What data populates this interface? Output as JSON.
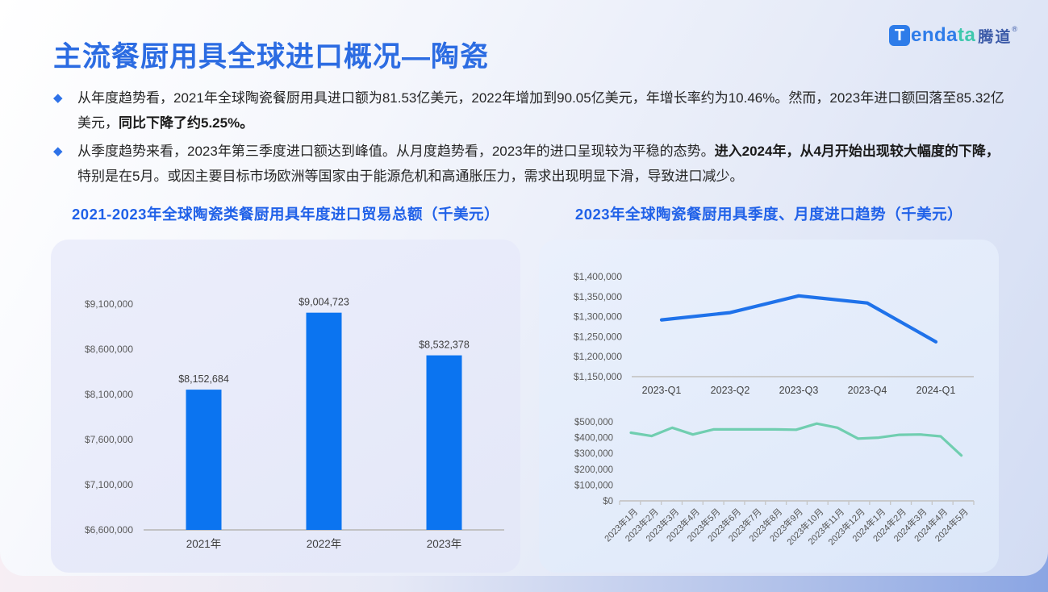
{
  "header": {
    "title": "主流餐厨用具全球进口概况—陶瓷",
    "logo": {
      "badge_letter": "T",
      "name_part_blue": "enda",
      "name_part_teal": "ta",
      "name_cn": "腾道",
      "registered_mark": "®",
      "brand_blue": "#2e7ce9",
      "brand_teal": "#3fc8ad"
    }
  },
  "ui": {
    "bullet_marker": "◆"
  },
  "bullets": [
    {
      "segments": [
        {
          "text": "从年度趋势看，2021年全球陶瓷餐厨用具进口额为81.53亿美元，2022年增加到90.05亿美元，年增长率约为10.46%。然而，2023年进口额回落至85.32亿美元，",
          "bold": false
        },
        {
          "text": "同比下降了约5.25%。",
          "bold": true
        }
      ]
    },
    {
      "segments": [
        {
          "text": "从季度趋势来看，2023年第三季度进口额达到峰值。从月度趋势看，2023年的进口呈现较为平稳的态势。",
          "bold": false
        },
        {
          "text": "进入2024年，从4月开始出现较大幅度的下降，",
          "bold": true
        },
        {
          "text": "特别是在5月。或因主要目标市场欧洲等国家由于能源危机和高通胀压力，需求出现明显下滑，导致进口减少。",
          "bold": false
        }
      ]
    }
  ],
  "sections": {
    "left_chart_title": "2021-2023年全球陶瓷类餐厨用具年度进口贸易总额（千美元）",
    "right_chart_title": "2023年全球陶瓷餐厨用具季度、月度进口趋势（千美元）"
  },
  "chart_data": [
    {
      "id": "annual_bar",
      "type": "bar",
      "title": "2021-2023年全球陶瓷类餐厨用具年度进口贸易总额（千美元）",
      "ylabel": "千美元",
      "categories": [
        "2021年",
        "2022年",
        "2023年"
      ],
      "values": [
        8152684,
        9004723,
        8532378
      ],
      "data_labels": [
        "$8,152,684",
        "$9,004,723",
        "$8,532,378"
      ],
      "ylim": [
        6600000,
        9100000
      ],
      "y_ticks": [
        {
          "value": 6600000,
          "label": "$6,600,000"
        },
        {
          "value": 7100000,
          "label": "$7,100,000"
        },
        {
          "value": 7600000,
          "label": "$7,600,000"
        },
        {
          "value": 8100000,
          "label": "$8,100,000"
        },
        {
          "value": 8600000,
          "label": "$8,600,000"
        },
        {
          "value": 9100000,
          "label": "$9,100,000"
        }
      ],
      "grid": false,
      "legend": "none",
      "color": "#0b74f0"
    },
    {
      "id": "quarterly_line",
      "type": "line",
      "title": "2023年全球陶瓷餐厨用具季度进口趋势（千美元）",
      "ylabel": "千美元",
      "categories": [
        "2023-Q1",
        "2023-Q2",
        "2023-Q3",
        "2023-Q4",
        "2024-Q1"
      ],
      "values": [
        1292000,
        1310000,
        1352000,
        1334000,
        1237000
      ],
      "ylim": [
        1150000,
        1400000
      ],
      "y_ticks": [
        {
          "value": 1150000,
          "label": "$1,150,000"
        },
        {
          "value": 1200000,
          "label": "$1,200,000"
        },
        {
          "value": 1250000,
          "label": "$1,250,000"
        },
        {
          "value": 1300000,
          "label": "$1,300,000"
        },
        {
          "value": 1350000,
          "label": "$1,350,000"
        },
        {
          "value": 1400000,
          "label": "$1,400,000"
        }
      ],
      "grid": false,
      "legend": "none",
      "color": "#1f72ea"
    },
    {
      "id": "monthly_line",
      "type": "line",
      "title": "2023年全球陶瓷餐厨用具月度进口趋势（千美元）",
      "ylabel": "千美元",
      "categories": [
        "2023年1月",
        "2023年2月",
        "2023年3月",
        "2023年4月",
        "2023年5月",
        "2023年6月",
        "2023年7月",
        "2023年8月",
        "2023年9月",
        "2023年10月",
        "2023年11月",
        "2023年12月",
        "2024年1月",
        "2024年2月",
        "2024年3月",
        "2024年4月",
        "2024年5月"
      ],
      "values": [
        431000,
        410000,
        463000,
        420000,
        452000,
        452000,
        452000,
        452000,
        450000,
        489000,
        463000,
        394000,
        400000,
        418000,
        420000,
        408000,
        287000
      ],
      "ylim": [
        0,
        500000
      ],
      "y_ticks": [
        {
          "value": 0,
          "label": "$0"
        },
        {
          "value": 100000,
          "label": "$100,000"
        },
        {
          "value": 200000,
          "label": "$200,000"
        },
        {
          "value": 300000,
          "label": "$300,000"
        },
        {
          "value": 400000,
          "label": "$400,000"
        },
        {
          "value": 500000,
          "label": "$500,000"
        }
      ],
      "x_label_rotation": 45,
      "grid": false,
      "legend": "none",
      "color": "#70ceb0"
    }
  ]
}
